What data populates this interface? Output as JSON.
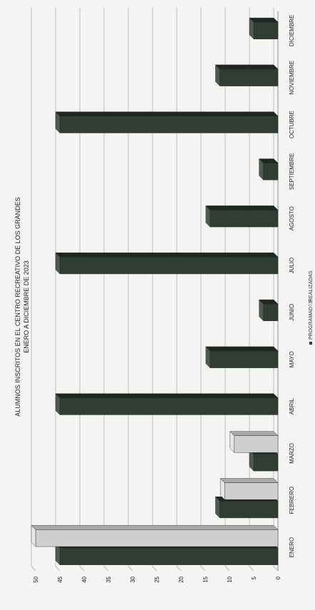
{
  "chart_data": {
    "type": "bar",
    "title": "ALUMNOS INSCRITOS EN EL CENTRO RECREATIVO DE LOS GRANDES",
    "subtitle": "ENERO A DICIEMBRE DE 2023",
    "categories": [
      "ENERO",
      "FEBRERO",
      "MARZO",
      "ABRIL",
      "MAYO",
      "JUNIO",
      "JULIO",
      "AGOSTO",
      "SEPTIEMBRE",
      "OCTUBRE",
      "NOVIEMBRE",
      "DICIEMBRE"
    ],
    "series": [
      {
        "name": "PROGRAMADAS",
        "values": [
          45,
          12,
          5,
          45,
          14,
          3,
          45,
          14,
          3,
          45,
          12,
          5
        ]
      },
      {
        "name": "REALIZADAS",
        "values": [
          50,
          11,
          9,
          0,
          0,
          0,
          0,
          0,
          0,
          0,
          0,
          0
        ]
      }
    ],
    "ylim": [
      0,
      50
    ],
    "yticks": [
      "0",
      "5",
      "10",
      "15",
      "20",
      "25",
      "30",
      "35",
      "40",
      "45",
      "50"
    ],
    "xlabel": "",
    "ylabel": "",
    "grid": true,
    "legend_position": "bottom",
    "colors": {
      "PROGRAMADAS": "#2f3d33",
      "REALIZADAS": "#cfcfcf"
    }
  }
}
